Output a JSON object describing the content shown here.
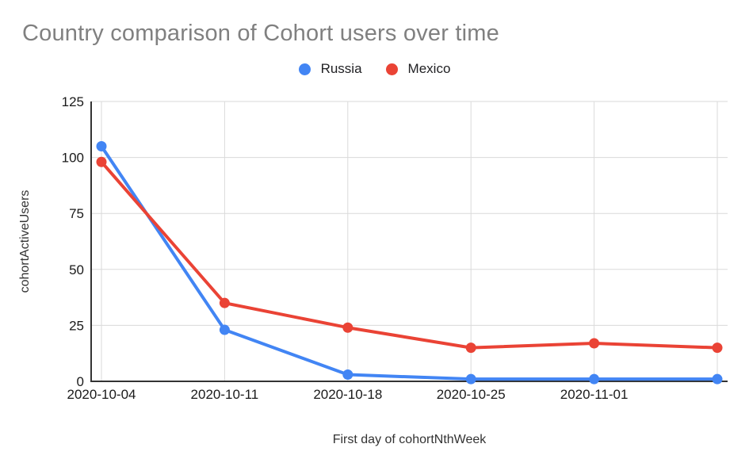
{
  "title": "Country comparison of Cohort users over time",
  "colors": {
    "background": "#ffffff",
    "title": "#808080",
    "grid": "#dadada",
    "axis": "#333333",
    "tick": "#1a1a1a",
    "axis_title": "#333333",
    "russia": "#4285F4",
    "mexico": "#EA4335"
  },
  "legend": {
    "items": [
      {
        "label": "Russia",
        "color": "#4285F4"
      },
      {
        "label": "Mexico",
        "color": "#EA4335"
      }
    ]
  },
  "chart_data": {
    "type": "line",
    "title": "Country comparison of Cohort users over time",
    "xlabel": "First day of cohortNthWeek",
    "ylabel": "cohortActiveUsers",
    "x_labels": [
      "2020-10-04",
      "2020-10-11",
      "2020-10-18",
      "2020-10-25",
      "2020-11-01",
      ""
    ],
    "series": [
      {
        "name": "Russia",
        "color": "#4285F4",
        "values": [
          105,
          23,
          3,
          1,
          1,
          1
        ]
      },
      {
        "name": "Mexico",
        "color": "#EA4335",
        "values": [
          98,
          35,
          24,
          15,
          17,
          15
        ]
      }
    ],
    "ylim": [
      0,
      125
    ],
    "yticks": [
      0,
      25,
      50,
      75,
      100,
      125
    ],
    "grid": true,
    "legend_position": "top",
    "marker": "circle"
  }
}
